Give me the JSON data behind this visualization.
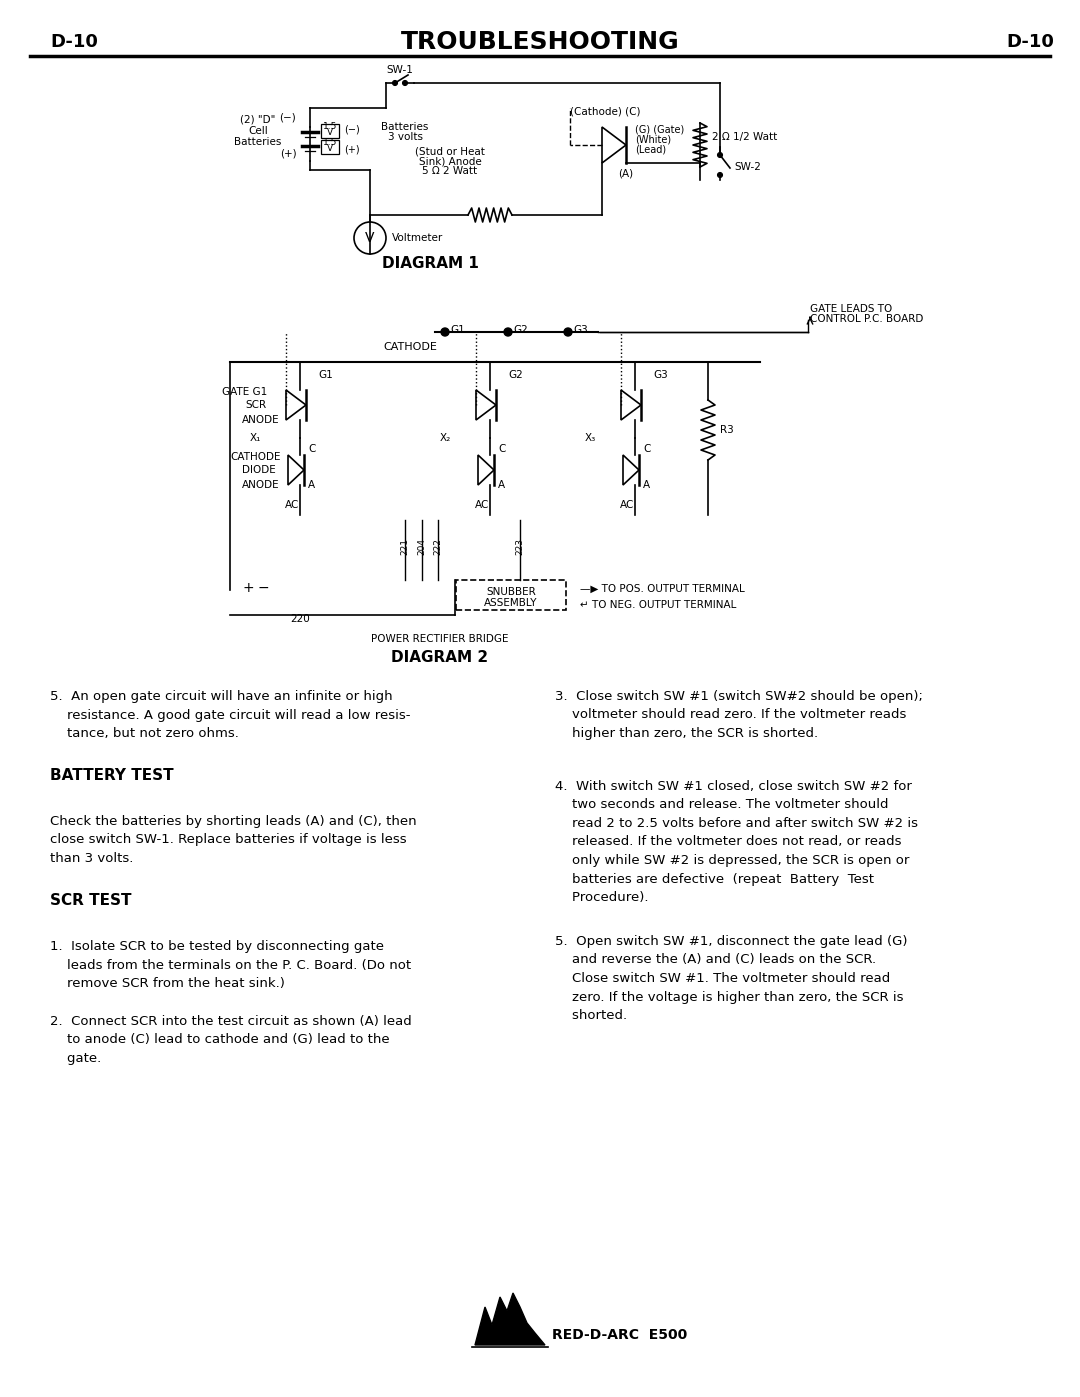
{
  "title": "TROUBLESHOOTING",
  "page_label": "D-10",
  "diagram1_label": "DIAGRAM 1",
  "diagram2_label": "DIAGRAM 2",
  "battery_test_heading": "BATTERY TEST",
  "scr_test_heading": "SCR TEST",
  "item5_text": "5.  An open gate circuit will have an infinite or high\n    resistance. A good gate circuit will read a low resis-\n    tance, but not zero ohms.",
  "scr_item1": "1.  Isolate SCR to be tested by disconnecting gate\n    leads from the terminals on the P. C. Board. (Do not\n    remove SCR from the heat sink.)",
  "scr_item2": "2.  Connect SCR into the test circuit as shown (A) lead\n    to anode (C) lead to cathode and (G) lead to the\n    gate.",
  "right_item3": "3.  Close switch SW #1 (switch SW#2 should be open);\n    voltmeter should read zero. If the voltmeter reads\n    higher than zero, the SCR is shorted.",
  "right_item4": "4.  With switch SW #1 closed, close switch SW #2 for\n    two seconds and release. The voltmeter should\n    read 2 to 2.5 volts before and after switch SW #2 is\n    released. If the voltmeter does not read, or reads\n    only while SW #2 is depressed, the SCR is open or\n    batteries are defective  (repeat  Battery  Test\n    Procedure).",
  "right_item5": "5.  Open switch SW #1, disconnect the gate lead (G)\n    and reverse the (A) and (C) leads on the SCR.\n    Close switch SW #1. The voltmeter should read\n    zero. If the voltage is higher than zero, the SCR is\n    shorted.",
  "battery_test_body": "Check the batteries by shorting leads (A) and (C), then\nclose switch SW-1. Replace batteries if voltage is less\nthan 3 volts.",
  "brand": "RED-D-ARC  E500",
  "bg_color": "#ffffff",
  "text_color": "#000000",
  "line_color": "#000000"
}
